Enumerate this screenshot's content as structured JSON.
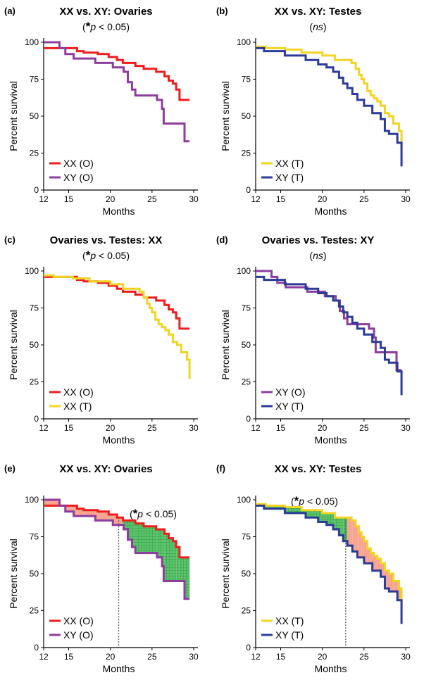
{
  "chart_data": [
    {
      "id": "a",
      "type": "line",
      "step": true,
      "panel_label": "(a)",
      "title": "XX vs. XY: Ovaries",
      "significance": {
        "prefix": "(",
        "star": "*",
        "p_symbol": "p",
        "text": " < 0.05)"
      },
      "xlabel": "Months",
      "ylabel": "Percent survival",
      "xlim": [
        12,
        30
      ],
      "ylim": [
        0,
        100
      ],
      "xticks": [
        12,
        15,
        20,
        25,
        30
      ],
      "yticks": [
        0,
        25,
        50,
        75,
        100
      ],
      "series": [
        {
          "name": "XX (O)",
          "color": "#ee1c1c",
          "x": [
            12,
            16.0,
            16.8,
            18.5,
            19.8,
            20.8,
            21.5,
            23.0,
            24.0,
            25.5,
            26.5,
            27.0,
            27.5,
            27.9,
            28.3,
            29.5
          ],
          "y": [
            96,
            94,
            93,
            92,
            90,
            88,
            86,
            84,
            82,
            80,
            77,
            74,
            72,
            68,
            61,
            61
          ]
        },
        {
          "name": "XY (O)",
          "color": "#8e3c9e",
          "x": [
            12,
            13.9,
            14.6,
            15.6,
            18.2,
            20.3,
            21.6,
            22.1,
            22.6,
            23.0,
            25.6,
            26.2,
            26.4,
            27.0,
            28.9,
            29.5
          ],
          "y": [
            100,
            96,
            92,
            89,
            86,
            83,
            80,
            73,
            68,
            64,
            61,
            55,
            45,
            45,
            33,
            33
          ]
        }
      ]
    },
    {
      "id": "b",
      "type": "line",
      "step": true,
      "panel_label": "(b)",
      "title": "XX vs. XY: Testes",
      "significance": {
        "prefix": "(",
        "star": "",
        "p_symbol": "ns",
        "text": ")"
      },
      "xlabel": "Months",
      "ylabel": "Percent survival",
      "xlim": [
        12,
        30
      ],
      "ylim": [
        0,
        100
      ],
      "xticks": [
        12,
        15,
        20,
        25,
        30
      ],
      "yticks": [
        0,
        25,
        50,
        75,
        100
      ],
      "series": [
        {
          "name": "XX (T)",
          "color": "#f2d422",
          "x": [
            12,
            13.2,
            15.5,
            17.5,
            20.0,
            21.5,
            22.3,
            23.5,
            24.0,
            24.4,
            24.7,
            25.0,
            25.4,
            25.8,
            26.2,
            26.6,
            27.0,
            27.5,
            28.0,
            28.5,
            29.2,
            29.5
          ],
          "y": [
            97,
            96,
            95,
            93,
            91,
            88,
            88,
            86,
            82,
            78,
            75,
            72,
            67,
            64,
            62,
            60,
            57,
            52,
            50,
            45,
            40,
            27
          ]
        },
        {
          "name": "XY (T)",
          "color": "#2b3b96",
          "x": [
            12,
            13.0,
            15.5,
            18.0,
            19.5,
            20.5,
            21.3,
            22.0,
            22.5,
            23.0,
            23.6,
            24.2,
            25.0,
            26.0,
            27.0,
            27.5,
            28.0,
            29.0,
            29.5
          ],
          "y": [
            96,
            94,
            91,
            88,
            85,
            83,
            80,
            76,
            72,
            69,
            65,
            61,
            57,
            52,
            48,
            40,
            38,
            32,
            16
          ]
        }
      ]
    },
    {
      "id": "c",
      "type": "line",
      "step": true,
      "panel_label": "(c)",
      "title": "Ovaries vs. Testes: XX",
      "significance": {
        "prefix": "(",
        "star": "*",
        "p_symbol": "p",
        "text": " < 0.05)"
      },
      "xlabel": "Months",
      "ylabel": "Percent survival",
      "xlim": [
        12,
        30
      ],
      "ylim": [
        0,
        100
      ],
      "xticks": [
        12,
        15,
        20,
        25,
        30
      ],
      "yticks": [
        0,
        25,
        50,
        75,
        100
      ],
      "series": [
        {
          "name": "XX (O)",
          "color": "#ee1c1c",
          "x": [
            12,
            16.0,
            16.8,
            18.5,
            19.8,
            20.8,
            21.5,
            23.0,
            24.0,
            25.5,
            26.5,
            27.0,
            27.5,
            27.9,
            28.3,
            29.5
          ],
          "y": [
            96,
            94,
            93,
            92,
            90,
            88,
            86,
            84,
            82,
            80,
            77,
            74,
            72,
            68,
            61,
            61
          ]
        },
        {
          "name": "XX (T)",
          "color": "#f2d422",
          "x": [
            12,
            13.2,
            15.5,
            17.5,
            20.0,
            21.5,
            22.3,
            23.5,
            24.0,
            24.4,
            24.7,
            25.0,
            25.4,
            25.8,
            26.2,
            26.6,
            27.0,
            27.5,
            28.0,
            28.5,
            29.2,
            29.5
          ],
          "y": [
            97,
            96,
            95,
            93,
            91,
            88,
            88,
            86,
            82,
            78,
            75,
            72,
            67,
            64,
            62,
            60,
            57,
            52,
            50,
            45,
            40,
            27
          ]
        }
      ]
    },
    {
      "id": "d",
      "type": "line",
      "step": true,
      "panel_label": "(d)",
      "title": "Ovaries vs. Testes: XY",
      "significance": {
        "prefix": "(",
        "star": "",
        "p_symbol": "ns",
        "text": ")"
      },
      "xlabel": "Months",
      "ylabel": "Percent survival",
      "xlim": [
        12,
        30
      ],
      "ylim": [
        0,
        100
      ],
      "xticks": [
        12,
        15,
        20,
        25,
        30
      ],
      "yticks": [
        0,
        25,
        50,
        75,
        100
      ],
      "series": [
        {
          "name": "XY (O)",
          "color": "#8e3c9e",
          "x": [
            12,
            13.9,
            14.6,
            15.6,
            18.2,
            20.3,
            21.6,
            22.1,
            22.6,
            23.0,
            25.6,
            26.2,
            26.4,
            27.0,
            28.9,
            29.5
          ],
          "y": [
            100,
            96,
            92,
            89,
            86,
            83,
            80,
            73,
            68,
            64,
            61,
            55,
            45,
            45,
            33,
            33
          ]
        },
        {
          "name": "XY (T)",
          "color": "#2b3b96",
          "x": [
            12,
            13.0,
            15.5,
            18.0,
            19.5,
            20.5,
            21.3,
            22.0,
            22.5,
            23.0,
            23.6,
            24.2,
            25.0,
            26.0,
            27.0,
            27.5,
            28.0,
            29.0,
            29.5
          ],
          "y": [
            96,
            94,
            91,
            88,
            85,
            83,
            80,
            76,
            72,
            69,
            65,
            61,
            57,
            52,
            48,
            40,
            38,
            32,
            16
          ]
        }
      ]
    },
    {
      "id": "e",
      "type": "line",
      "step": true,
      "shaded": true,
      "panel_label": "(e)",
      "title": "XX vs. XY: Ovaries",
      "significance": {
        "prefix": "(",
        "star": "*",
        "p_symbol": "p",
        "text": " < 0.05)",
        "position": "in-plot"
      },
      "cutoff_month": 21.0,
      "xlabel": "Months",
      "ylabel": "Percent survival",
      "xlim": [
        12,
        30
      ],
      "ylim": [
        0,
        100
      ],
      "xticks": [
        12,
        15,
        20,
        25,
        30
      ],
      "yticks": [
        0,
        25,
        50,
        75,
        100
      ],
      "series": [
        {
          "name": "XX (O)",
          "color": "#ee1c1c",
          "x": [
            12,
            16.0,
            16.8,
            18.5,
            19.8,
            20.8,
            21.5,
            23.0,
            24.0,
            25.5,
            26.5,
            27.0,
            27.5,
            27.9,
            28.3,
            29.5
          ],
          "y": [
            96,
            94,
            93,
            92,
            90,
            88,
            86,
            84,
            82,
            80,
            77,
            74,
            72,
            68,
            61,
            61
          ]
        },
        {
          "name": "XY (O)",
          "color": "#8e3c9e",
          "x": [
            12,
            13.9,
            14.6,
            15.6,
            18.2,
            20.3,
            21.6,
            22.1,
            22.6,
            23.0,
            25.6,
            26.2,
            26.4,
            27.0,
            28.9,
            29.5
          ],
          "y": [
            100,
            96,
            92,
            89,
            86,
            83,
            80,
            73,
            68,
            64,
            61,
            55,
            45,
            45,
            33,
            33
          ]
        }
      ]
    },
    {
      "id": "f",
      "type": "line",
      "step": true,
      "shaded": true,
      "panel_label": "(f)",
      "title": "XX vs. XY: Testes",
      "significance": {
        "prefix": "(",
        "star": "*",
        "p_symbol": "p",
        "text": " < 0.05)",
        "position": "in-plot"
      },
      "cutoff_month": 22.8,
      "xlabel": "Months",
      "ylabel": "Percent survival",
      "xlim": [
        12,
        30
      ],
      "ylim": [
        0,
        100
      ],
      "xticks": [
        12,
        15,
        20,
        25,
        30
      ],
      "yticks": [
        0,
        25,
        50,
        75,
        100
      ],
      "series": [
        {
          "name": "XX (T)",
          "color": "#f2d422",
          "x": [
            12,
            13.2,
            15.5,
            17.5,
            20.0,
            21.5,
            22.3,
            23.5,
            24.0,
            24.4,
            24.7,
            25.0,
            25.4,
            25.8,
            26.2,
            26.6,
            27.0,
            27.5,
            28.0,
            28.5,
            29.2,
            29.5
          ],
          "y": [
            97,
            96,
            95,
            93,
            91,
            88,
            88,
            86,
            82,
            78,
            75,
            72,
            67,
            64,
            62,
            60,
            57,
            52,
            50,
            45,
            40,
            27
          ]
        },
        {
          "name": "XY (T)",
          "color": "#2b3b96",
          "x": [
            12,
            13.0,
            15.5,
            18.0,
            19.5,
            20.5,
            21.3,
            22.0,
            22.5,
            23.0,
            23.6,
            24.2,
            25.0,
            26.0,
            27.0,
            27.5,
            28.0,
            29.0,
            29.5
          ],
          "y": [
            96,
            94,
            91,
            88,
            85,
            83,
            80,
            76,
            72,
            69,
            65,
            61,
            57,
            52,
            48,
            40,
            38,
            32,
            16
          ]
        }
      ]
    }
  ],
  "colors": {
    "shade_early": "#f7a591",
    "shade_late": "#59c46a",
    "shade_grid": "#2e8b3c",
    "cutoff_line": "#555555"
  }
}
